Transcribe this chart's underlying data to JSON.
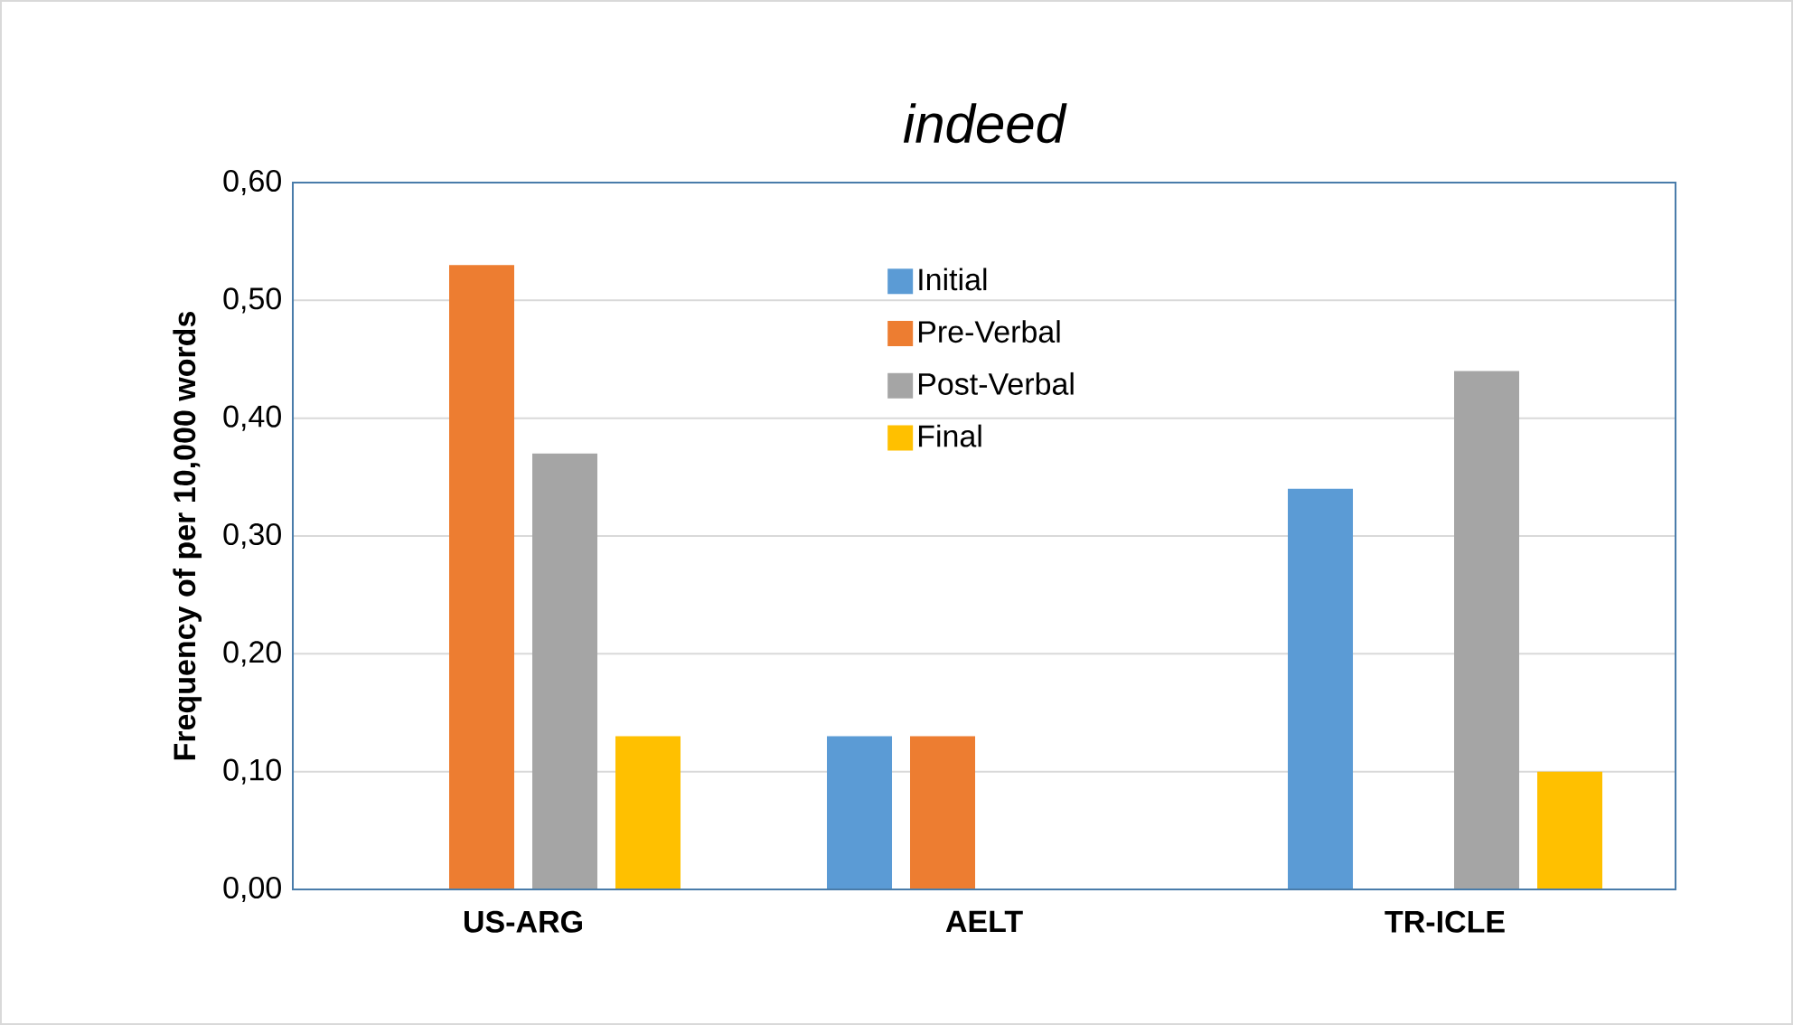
{
  "chart_data": {
    "type": "bar",
    "title": "indeed",
    "ylabel": "Frequency of per 10,000 words",
    "categories": [
      "US-ARG",
      "AELT",
      "TR-ICLE"
    ],
    "series": [
      {
        "name": "Initial",
        "color": "#5b9bd5",
        "values": [
          0,
          0.13,
          0.34
        ]
      },
      {
        "name": "Pre-Verbal",
        "color": "#ed7d31",
        "values": [
          0.53,
          0.13,
          0
        ]
      },
      {
        "name": "Post-Verbal",
        "color": "#a5a5a5",
        "values": [
          0.37,
          0,
          0.44
        ]
      },
      {
        "name": "Final",
        "color": "#ffc000",
        "values": [
          0.13,
          0,
          0.1
        ]
      }
    ],
    "ylim": [
      0,
      0.6
    ],
    "yticks": [
      {
        "value": 0,
        "label": "0,00"
      },
      {
        "value": 0.1,
        "label": "0,10"
      },
      {
        "value": 0.2,
        "label": "0,20"
      },
      {
        "value": 0.3,
        "label": "0,30"
      },
      {
        "value": 0.4,
        "label": "0,40"
      },
      {
        "value": 0.5,
        "label": "0,50"
      },
      {
        "value": 0.6,
        "label": "0,60"
      }
    ],
    "grid": "y",
    "legend": "top"
  }
}
